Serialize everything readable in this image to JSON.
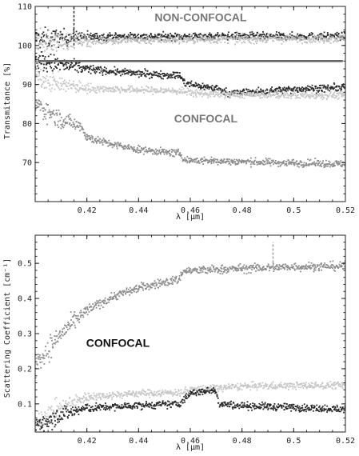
{
  "chart_data": [
    {
      "type": "scatter",
      "xlabel": "λ [µm]",
      "ylabel": "Transmitance [%]",
      "xlim": [
        0.4,
        0.52
      ],
      "ylim": [
        60,
        110
      ],
      "x_ticks": [
        {
          "v": 0.42,
          "label": "0.42"
        },
        {
          "v": 0.44,
          "label": "0.44"
        },
        {
          "v": 0.46,
          "label": "0.46"
        },
        {
          "v": 0.48,
          "label": "0.48"
        },
        {
          "v": 0.5,
          "label": "0.5"
        },
        {
          "v": 0.52,
          "label": "0.52"
        }
      ],
      "y_ticks": [
        {
          "v": 70,
          "label": "70"
        },
        {
          "v": 80,
          "label": "80"
        },
        {
          "v": 90,
          "label": "90"
        },
        {
          "v": 100,
          "label": "100"
        },
        {
          "v": 110,
          "label": "110"
        }
      ],
      "annotations": [
        {
          "text": "NON-CONFOCAL",
          "x": 0.464,
          "y": 106.2,
          "color": "#777777"
        },
        {
          "text": "CONFOCAL",
          "x": 0.466,
          "y": 80.3,
          "color": "#777777"
        }
      ],
      "reference_lines": [
        {
          "y": 96,
          "x0": 0.401,
          "x1": 0.519,
          "color": "#666666"
        }
      ],
      "markers": [
        {
          "x": 0.415,
          "y0": 100,
          "y1": 110,
          "color": "#222222"
        }
      ],
      "series": [
        {
          "color": "#2a2a2a",
          "noise": 0.45,
          "x": [
            0.4,
            0.41,
            0.42,
            0.44,
            0.46,
            0.48,
            0.5,
            0.52
          ],
          "values": [
            101.5,
            102,
            102.2,
            102.3,
            102.3,
            102.4,
            102.3,
            102.4
          ]
        },
        {
          "color": "#bdbdbd",
          "noise": 0.5,
          "x": [
            0.4,
            0.41,
            0.42,
            0.44,
            0.46,
            0.48,
            0.5,
            0.52
          ],
          "values": [
            100.5,
            101,
            101.2,
            101.4,
            101.5,
            101.6,
            101.7,
            101.8
          ]
        },
        {
          "color": "#2a2a2a",
          "noise": 0.45,
          "x": [
            0.4,
            0.41,
            0.42,
            0.43,
            0.44,
            0.456,
            0.458,
            0.47,
            0.475,
            0.49,
            0.5,
            0.52
          ],
          "values": [
            96,
            95,
            94,
            93.3,
            92.8,
            92.3,
            90.2,
            89,
            87.8,
            88.3,
            88.8,
            89.2
          ]
        },
        {
          "color": "#c7c7c7",
          "noise": 0.45,
          "x": [
            0.4,
            0.41,
            0.42,
            0.44,
            0.456,
            0.46,
            0.47,
            0.48,
            0.5,
            0.52
          ],
          "values": [
            92,
            90,
            89,
            88.6,
            88.3,
            87.9,
            87.5,
            87.4,
            87.2,
            87.3
          ]
        },
        {
          "color": "#8c8c8c",
          "noise": 0.45,
          "x": [
            0.4,
            0.41,
            0.418,
            0.42,
            0.43,
            0.44,
            0.456,
            0.458,
            0.47,
            0.48,
            0.5,
            0.52
          ],
          "values": [
            85,
            81,
            79.3,
            76.5,
            74.6,
            73.3,
            72.3,
            70.6,
            70.4,
            70.2,
            69.9,
            69.6
          ]
        }
      ]
    },
    {
      "type": "scatter",
      "xlabel": "λ [µm]",
      "ylabel": "Scattering Coefficient [cm⁻¹]",
      "xlim": [
        0.4,
        0.52
      ],
      "ylim": [
        0.02,
        0.58
      ],
      "x_ticks": [
        {
          "v": 0.42,
          "label": "0.42"
        },
        {
          "v": 0.44,
          "label": "0.44"
        },
        {
          "v": 0.46,
          "label": "0.46"
        },
        {
          "v": 0.48,
          "label": "0.48"
        },
        {
          "v": 0.5,
          "label": "0.5"
        },
        {
          "v": 0.52,
          "label": "0.52"
        }
      ],
      "y_ticks": [
        {
          "v": 0.1,
          "label": "0.1"
        },
        {
          "v": 0.2,
          "label": "0.2"
        },
        {
          "v": 0.3,
          "label": "0.3"
        },
        {
          "v": 0.4,
          "label": "0.4"
        },
        {
          "v": 0.5,
          "label": "0.5"
        }
      ],
      "annotations": [
        {
          "text": "CONFOCAL",
          "x": 0.432,
          "y": 0.263,
          "color": "#111111"
        }
      ],
      "reference_lines": [],
      "markers": [
        {
          "x": 0.492,
          "y0": 0.49,
          "y1": 0.56,
          "color": "#999999"
        }
      ],
      "series": [
        {
          "color": "#8c8c8c",
          "noise": 0.006,
          "x": [
            0.4,
            0.41,
            0.42,
            0.43,
            0.44,
            0.456,
            0.457,
            0.47,
            0.48,
            0.5,
            0.52
          ],
          "values": [
            0.21,
            0.3,
            0.365,
            0.405,
            0.43,
            0.455,
            0.478,
            0.482,
            0.485,
            0.49,
            0.492
          ]
        },
        {
          "color": "#c7c7c7",
          "noise": 0.005,
          "x": [
            0.4,
            0.41,
            0.42,
            0.44,
            0.456,
            0.46,
            0.48,
            0.5,
            0.52
          ],
          "values": [
            0.05,
            0.09,
            0.12,
            0.13,
            0.132,
            0.14,
            0.15,
            0.152,
            0.153
          ]
        },
        {
          "color": "#2a2a2a",
          "noise": 0.005,
          "x": [
            0.4,
            0.41,
            0.42,
            0.44,
            0.456,
            0.46,
            0.47,
            0.471,
            0.48,
            0.5,
            0.52
          ],
          "values": [
            0.04,
            0.07,
            0.088,
            0.095,
            0.1,
            0.13,
            0.14,
            0.1,
            0.095,
            0.09,
            0.085
          ]
        }
      ]
    }
  ]
}
